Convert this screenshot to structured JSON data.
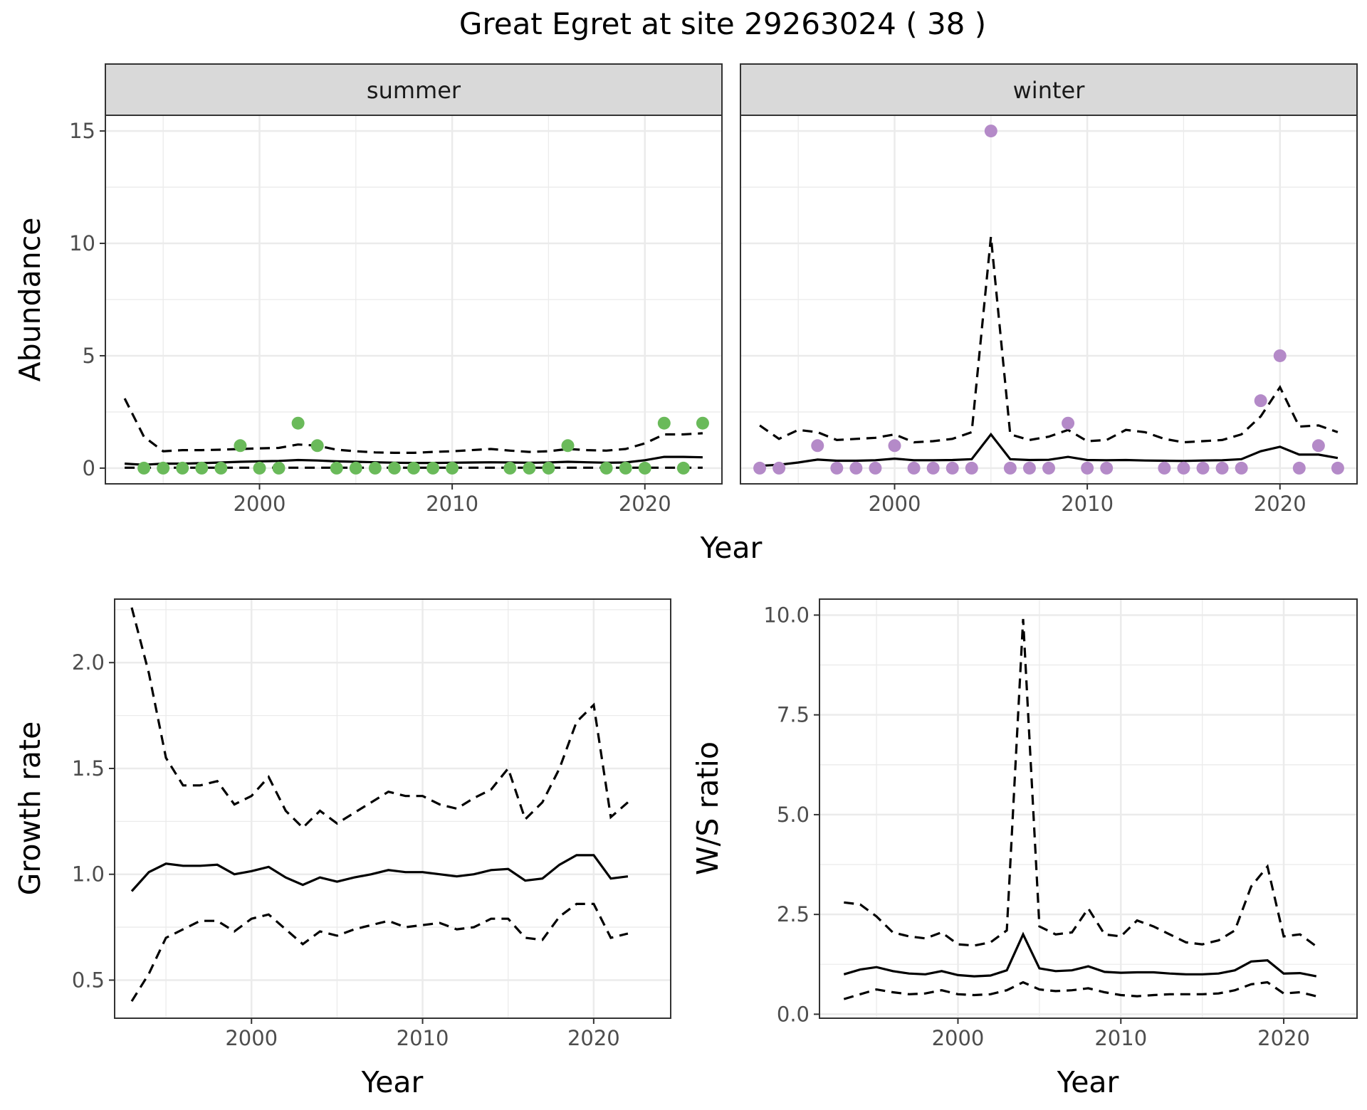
{
  "title": "Great Egret at site 29263024 ( 38 )",
  "colors": {
    "summer_points": "#6aba5a",
    "winter_points": "#b48ac8",
    "line": "#000000"
  },
  "chart_data": [
    {
      "id": "abundance_summer",
      "type": "scatter",
      "facet": "summer",
      "xlabel": "Year",
      "ylabel": "Abundance",
      "xlim": [
        1992,
        2024
      ],
      "ylim": [
        -0.7,
        15.7
      ],
      "xticks": [
        2000,
        2010,
        2020
      ],
      "yticks": [
        0,
        5,
        10,
        15
      ],
      "points": {
        "x": [
          1994,
          1995,
          1996,
          1997,
          1998,
          1999,
          2000,
          2001,
          2002,
          2003,
          2004,
          2005,
          2006,
          2007,
          2008,
          2009,
          2010,
          2013,
          2014,
          2015,
          2016,
          2018,
          2019,
          2020,
          2021,
          2022,
          2023
        ],
        "y": [
          0,
          0,
          0,
          0,
          0,
          1,
          0,
          0,
          2,
          1,
          0,
          0,
          0,
          0,
          0,
          0,
          0,
          0,
          0,
          0,
          1,
          0,
          0,
          0,
          2,
          0,
          2
        ]
      },
      "lines": {
        "x": [
          1993,
          1994,
          1995,
          1996,
          1997,
          1998,
          1999,
          2000,
          2001,
          2002,
          2003,
          2004,
          2005,
          2006,
          2007,
          2008,
          2009,
          2010,
          2011,
          2012,
          2013,
          2014,
          2015,
          2016,
          2017,
          2018,
          2019,
          2020,
          2021,
          2022,
          2023
        ],
        "mean": [
          0.2,
          0.15,
          0.2,
          0.2,
          0.22,
          0.25,
          0.28,
          0.3,
          0.32,
          0.36,
          0.34,
          0.3,
          0.28,
          0.26,
          0.24,
          0.23,
          0.23,
          0.24,
          0.25,
          0.26,
          0.25,
          0.24,
          0.25,
          0.28,
          0.26,
          0.24,
          0.25,
          0.35,
          0.5,
          0.5,
          0.48
        ],
        "upper": [
          3.1,
          1.4,
          0.75,
          0.8,
          0.8,
          0.82,
          0.85,
          0.88,
          0.9,
          1.05,
          1.0,
          0.82,
          0.75,
          0.7,
          0.68,
          0.68,
          0.72,
          0.75,
          0.8,
          0.85,
          0.78,
          0.72,
          0.75,
          0.85,
          0.8,
          0.78,
          0.85,
          1.1,
          1.5,
          1.5,
          1.55
        ],
        "lower": [
          0.02,
          0.02,
          0.02,
          0.02,
          0.02,
          0.02,
          0.02,
          0.02,
          0.02,
          0.02,
          0.02,
          0.02,
          0.02,
          0.02,
          0.02,
          0.02,
          0.02,
          0.02,
          0.02,
          0.02,
          0.02,
          0.02,
          0.02,
          0.02,
          0.02,
          0.02,
          0.02,
          0.02,
          0.02,
          0.02,
          0.02
        ]
      }
    },
    {
      "id": "abundance_winter",
      "type": "scatter",
      "facet": "winter",
      "xlabel": "Year",
      "ylabel": "Abundance",
      "xlim": [
        1992,
        2024
      ],
      "ylim": [
        -0.7,
        15.7
      ],
      "xticks": [
        2000,
        2010,
        2020
      ],
      "yticks": [
        0,
        5,
        10,
        15
      ],
      "points": {
        "x": [
          1993,
          1994,
          1996,
          1997,
          1998,
          1999,
          2000,
          2001,
          2002,
          2003,
          2004,
          2005,
          2006,
          2007,
          2008,
          2009,
          2010,
          2011,
          2014,
          2015,
          2016,
          2017,
          2018,
          2019,
          2020,
          2021,
          2022,
          2023
        ],
        "y": [
          0,
          0,
          1,
          0,
          0,
          0,
          1,
          0,
          0,
          0,
          0,
          15,
          0,
          0,
          0,
          2,
          0,
          0,
          0,
          0,
          0,
          0,
          0,
          3,
          5,
          0,
          1,
          0
        ]
      },
      "lines": {
        "x": [
          1993,
          1994,
          1995,
          1996,
          1997,
          1998,
          1999,
          2000,
          2001,
          2002,
          2003,
          2004,
          2005,
          2006,
          2007,
          2008,
          2009,
          2010,
          2011,
          2012,
          2013,
          2014,
          2015,
          2016,
          2017,
          2018,
          2019,
          2020,
          2021,
          2022,
          2023
        ],
        "mean": [
          0.1,
          0.15,
          0.25,
          0.38,
          0.33,
          0.33,
          0.35,
          0.42,
          0.35,
          0.35,
          0.36,
          0.4,
          1.5,
          0.4,
          0.36,
          0.37,
          0.5,
          0.36,
          0.35,
          0.36,
          0.34,
          0.33,
          0.32,
          0.34,
          0.35,
          0.4,
          0.75,
          0.95,
          0.6,
          0.6,
          0.45
        ],
        "upper": [
          1.9,
          1.3,
          1.7,
          1.6,
          1.25,
          1.3,
          1.35,
          1.5,
          1.15,
          1.2,
          1.3,
          1.6,
          10.3,
          1.5,
          1.25,
          1.4,
          1.7,
          1.2,
          1.25,
          1.7,
          1.6,
          1.3,
          1.15,
          1.2,
          1.25,
          1.5,
          2.3,
          3.6,
          1.85,
          1.9,
          1.6
        ]
      }
    },
    {
      "id": "growth_rate",
      "type": "line",
      "xlabel": "Year",
      "ylabel": "Growth rate",
      "xlim": [
        1992,
        2024.5
      ],
      "ylim": [
        0.32,
        2.3
      ],
      "xticks": [
        2000,
        2010,
        2020
      ],
      "yticks": [
        0.5,
        1.0,
        1.5,
        2.0
      ],
      "ytick_labels": [
        "0.5",
        "1.0",
        "1.5",
        "2.0"
      ],
      "lines": {
        "x": [
          1993,
          1994,
          1995,
          1996,
          1997,
          1998,
          1999,
          2000,
          2001,
          2002,
          2003,
          2004,
          2005,
          2006,
          2007,
          2008,
          2009,
          2010,
          2011,
          2012,
          2013,
          2014,
          2015,
          2016,
          2017,
          2018,
          2019,
          2020,
          2021,
          2022
        ],
        "mean": [
          0.92,
          1.01,
          1.05,
          1.04,
          1.04,
          1.045,
          1.0,
          1.015,
          1.035,
          0.985,
          0.95,
          0.985,
          0.965,
          0.985,
          1.0,
          1.02,
          1.01,
          1.01,
          1.0,
          0.99,
          1.0,
          1.02,
          1.025,
          0.97,
          0.98,
          1.045,
          1.09,
          1.09,
          0.98,
          0.99
        ],
        "upper": [
          2.26,
          1.95,
          1.55,
          1.42,
          1.42,
          1.44,
          1.33,
          1.37,
          1.46,
          1.3,
          1.22,
          1.3,
          1.24,
          1.29,
          1.34,
          1.39,
          1.37,
          1.37,
          1.33,
          1.31,
          1.36,
          1.4,
          1.5,
          1.26,
          1.34,
          1.5,
          1.72,
          1.8,
          1.27,
          1.34
        ],
        "lower": [
          0.4,
          0.53,
          0.7,
          0.74,
          0.78,
          0.78,
          0.73,
          0.79,
          0.81,
          0.74,
          0.67,
          0.73,
          0.71,
          0.74,
          0.76,
          0.78,
          0.75,
          0.76,
          0.77,
          0.74,
          0.75,
          0.79,
          0.79,
          0.7,
          0.69,
          0.8,
          0.86,
          0.86,
          0.7,
          0.72
        ]
      }
    },
    {
      "id": "ws_ratio",
      "type": "line",
      "xlabel": "Year",
      "ylabel": "W/S ratio",
      "xlim": [
        1991.5,
        2024.5
      ],
      "ylim": [
        -0.1,
        10.4
      ],
      "xticks": [
        2000,
        2010,
        2020
      ],
      "yticks": [
        0,
        2.5,
        5,
        7.5,
        10
      ],
      "ytick_labels": [
        "0.0",
        "2.5",
        "5.0",
        "7.5",
        "10.0"
      ],
      "lines": {
        "x": [
          1993,
          1994,
          1995,
          1996,
          1997,
          1998,
          1999,
          2000,
          2001,
          2002,
          2003,
          2004,
          2005,
          2006,
          2007,
          2008,
          2009,
          2010,
          2011,
          2012,
          2013,
          2014,
          2015,
          2016,
          2017,
          2018,
          2019,
          2020,
          2021,
          2022
        ],
        "mean": [
          1.0,
          1.12,
          1.18,
          1.08,
          1.02,
          1.0,
          1.08,
          0.98,
          0.95,
          0.97,
          1.1,
          2.0,
          1.15,
          1.08,
          1.1,
          1.2,
          1.06,
          1.04,
          1.05,
          1.05,
          1.02,
          1.0,
          1.0,
          1.02,
          1.1,
          1.32,
          1.35,
          1.02,
          1.03,
          0.95
        ],
        "upper": [
          2.8,
          2.75,
          2.45,
          2.05,
          1.95,
          1.9,
          2.05,
          1.75,
          1.72,
          1.8,
          2.1,
          9.9,
          2.2,
          2.0,
          2.05,
          2.65,
          2.0,
          1.95,
          2.35,
          2.2,
          2.0,
          1.8,
          1.75,
          1.85,
          2.1,
          3.2,
          3.7,
          1.95,
          2.0,
          1.7
        ],
        "lower": [
          0.38,
          0.5,
          0.62,
          0.55,
          0.5,
          0.52,
          0.6,
          0.5,
          0.48,
          0.5,
          0.6,
          0.8,
          0.62,
          0.58,
          0.6,
          0.65,
          0.55,
          0.48,
          0.45,
          0.48,
          0.5,
          0.5,
          0.5,
          0.52,
          0.6,
          0.75,
          0.8,
          0.52,
          0.55,
          0.45
        ]
      }
    }
  ],
  "facet_labels": [
    "summer",
    "winter"
  ],
  "axis_titles": {
    "top_x": "Year",
    "top_y": "Abundance",
    "growth_x": "Year",
    "growth_y": "Growth rate",
    "ratio_x": "Year",
    "ratio_y": "W/S ratio"
  }
}
